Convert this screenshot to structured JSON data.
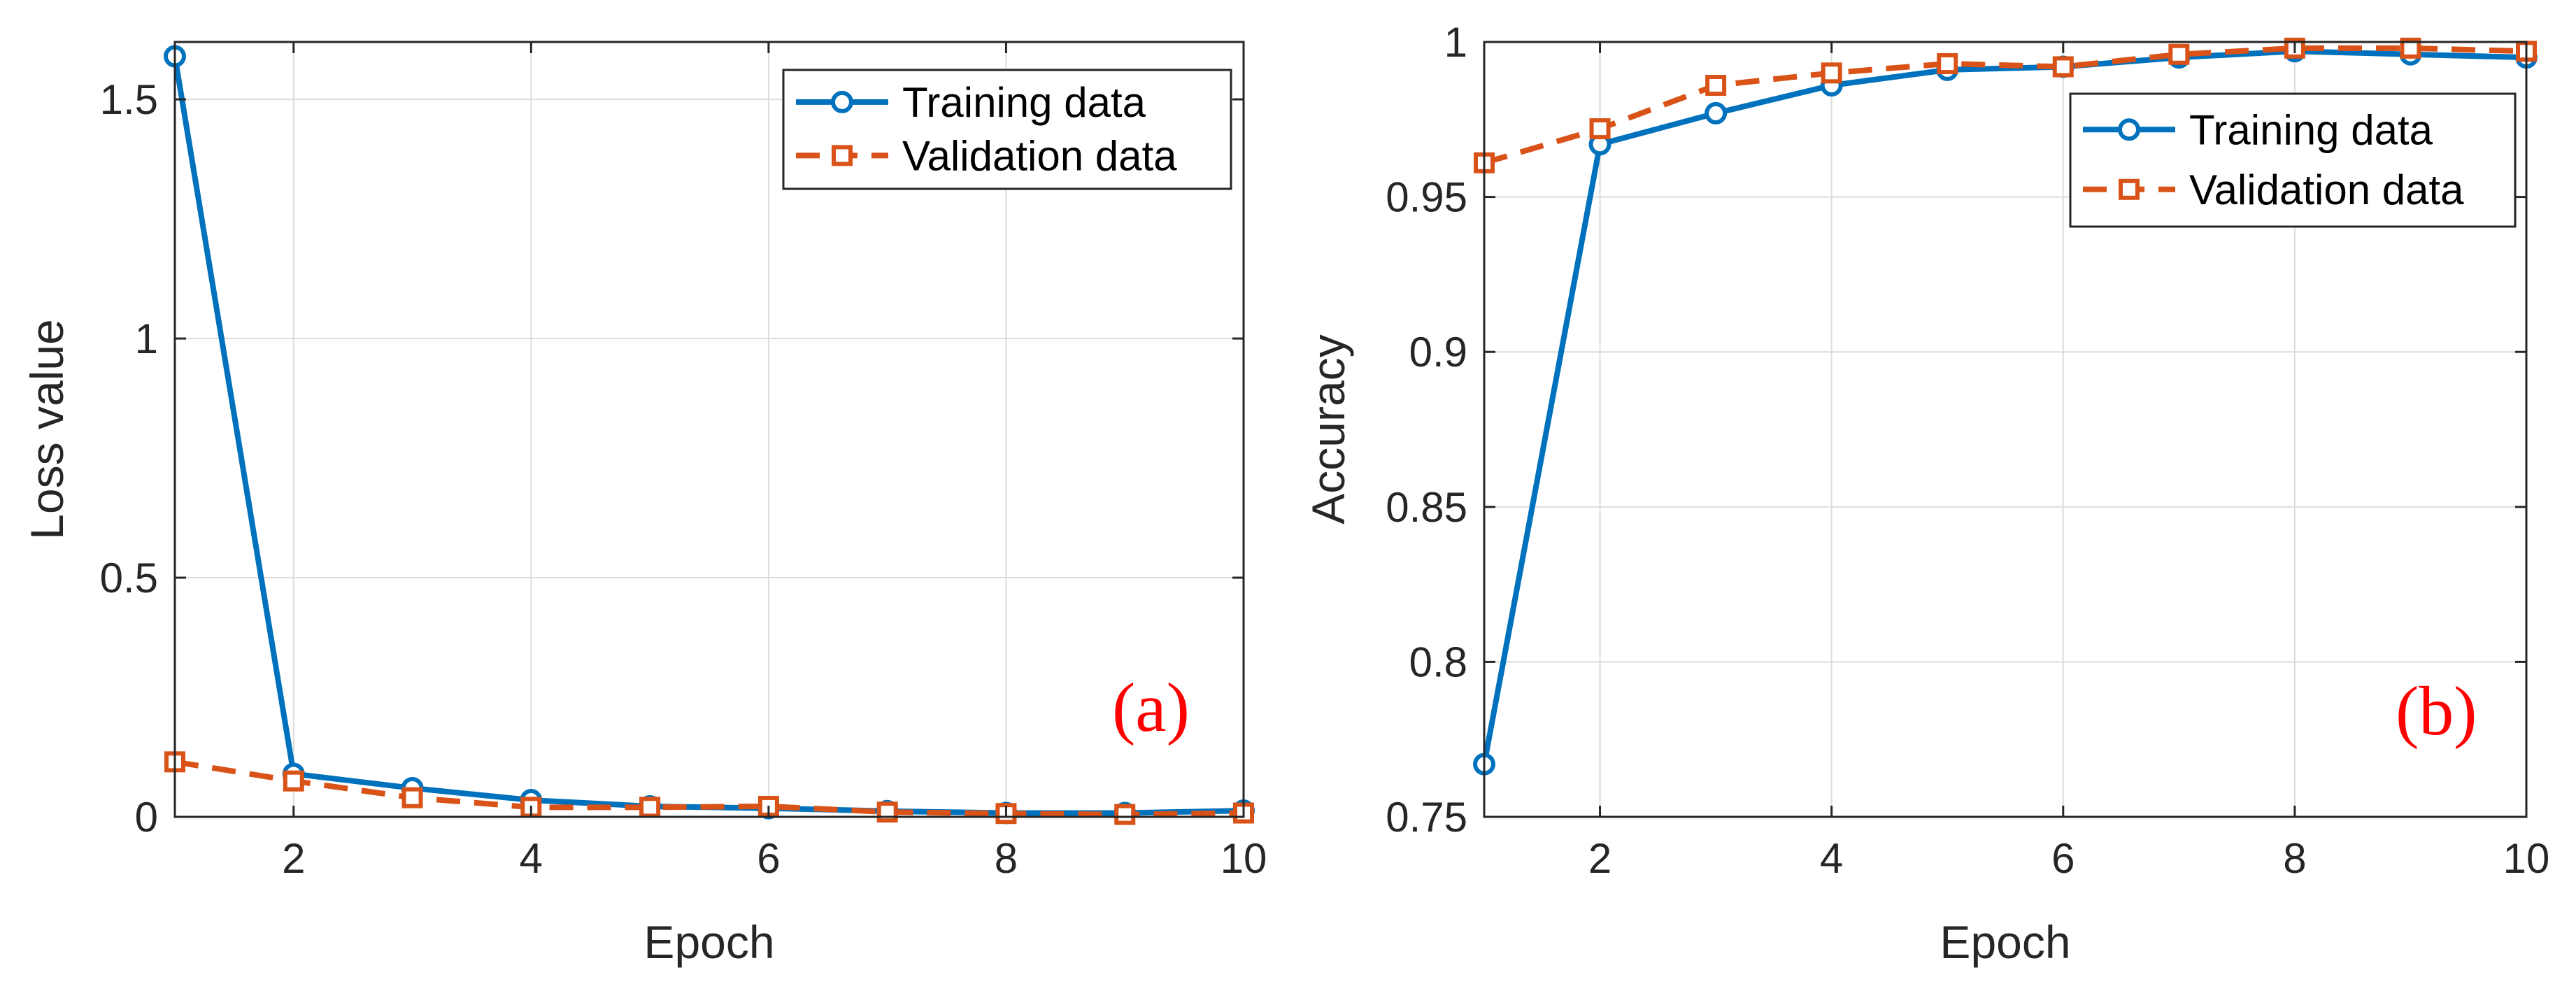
{
  "colors": {
    "training": "#0072BD",
    "validation": "#D95319",
    "grid": "#dcdcdc",
    "axis": "#262626",
    "panel_label": "#ff0000"
  },
  "chart_data": [
    {
      "type": "line",
      "panel_label": "(a)",
      "xlabel": "Epoch",
      "ylabel": "Loss value",
      "xlim": [
        1,
        10
      ],
      "ylim": [
        0,
        1.62
      ],
      "xticks": [
        2,
        4,
        6,
        8,
        10
      ],
      "xtick_labels": [
        "2",
        "4",
        "6",
        "8",
        "10"
      ],
      "yticks": [
        0,
        0.5,
        1,
        1.5
      ],
      "ytick_labels": [
        "0",
        "0.5",
        "1",
        "1.5"
      ],
      "grid": true,
      "legend_position": "top-right",
      "x": [
        1,
        2,
        3,
        4,
        5,
        6,
        7,
        8,
        9,
        10
      ],
      "series": [
        {
          "name": "Training data",
          "style": "solid-circle",
          "values": [
            1.59,
            0.09,
            0.06,
            0.035,
            0.022,
            0.018,
            0.012,
            0.008,
            0.008,
            0.013
          ]
        },
        {
          "name": "Validation data",
          "style": "dashed-square",
          "values": [
            0.115,
            0.075,
            0.04,
            0.02,
            0.02,
            0.022,
            0.01,
            0.007,
            0.005,
            0.008
          ]
        }
      ]
    },
    {
      "type": "line",
      "panel_label": "(b)",
      "xlabel": "Epoch",
      "ylabel": "Accuracy",
      "xlim": [
        1,
        10
      ],
      "ylim": [
        0.75,
        1
      ],
      "xticks": [
        2,
        4,
        6,
        8,
        10
      ],
      "xtick_labels": [
        "2",
        "4",
        "6",
        "8",
        "10"
      ],
      "yticks": [
        0.75,
        0.8,
        0.85,
        0.9,
        0.95,
        1
      ],
      "ytick_labels": [
        "0.75",
        "0.8",
        "0.85",
        "0.9",
        "0.95",
        "1"
      ],
      "grid": true,
      "legend_position": "top-right",
      "x": [
        1,
        2,
        3,
        4,
        5,
        6,
        7,
        8,
        9,
        10
      ],
      "series": [
        {
          "name": "Training data",
          "style": "solid-circle",
          "values": [
            0.767,
            0.967,
            0.977,
            0.986,
            0.991,
            0.992,
            0.995,
            0.997,
            0.996,
            0.995
          ]
        },
        {
          "name": "Validation data",
          "style": "dashed-square",
          "values": [
            0.961,
            0.972,
            0.986,
            0.99,
            0.993,
            0.992,
            0.996,
            0.998,
            0.998,
            0.997
          ]
        }
      ]
    }
  ]
}
